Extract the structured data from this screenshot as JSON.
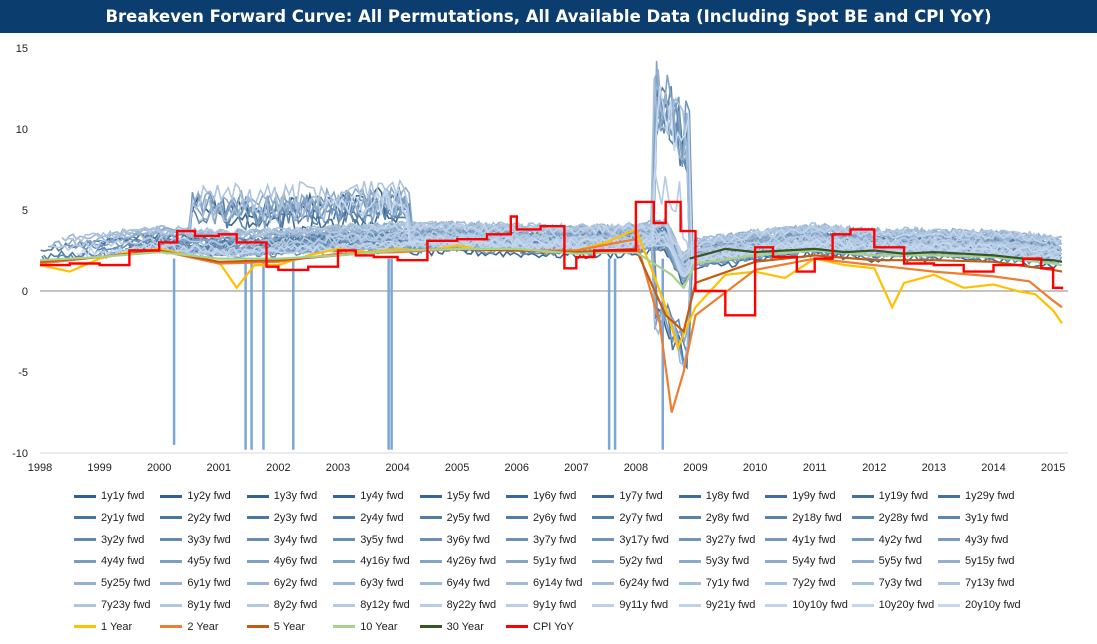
{
  "chart_data": {
    "type": "line",
    "title": "Breakeven Forward Curve: All Permutations, All Available Data (Including Spot BE and CPI YoY)",
    "xlabel": "",
    "ylabel": "",
    "xlim": [
      1998,
      2015.25
    ],
    "ylim": [
      -10,
      15
    ],
    "y_ticks": [
      -10,
      -5,
      0,
      5,
      10,
      15
    ],
    "x_ticks": [
      1998,
      1999,
      2000,
      2001,
      2002,
      2003,
      2004,
      2005,
      2006,
      2007,
      2008,
      2009,
      2010,
      2011,
      2012,
      2013,
      2014,
      2015
    ],
    "grid": false,
    "legend_position": "bottom",
    "forward_series_names": [
      "1y1y fwd",
      "1y2y fwd",
      "1y3y fwd",
      "1y4y fwd",
      "1y5y fwd",
      "1y6y fwd",
      "1y7y fwd",
      "1y8y fwd",
      "1y9y fwd",
      "1y19y fwd",
      "1y29y fwd",
      "2y1y fwd",
      "2y2y fwd",
      "2y3y fwd",
      "2y4y fwd",
      "2y5y fwd",
      "2y6y fwd",
      "2y7y fwd",
      "2y8y fwd",
      "2y18y fwd",
      "2y28y fwd",
      "3y1y fwd",
      "3y2y fwd",
      "3y3y fwd",
      "3y4y fwd",
      "3y5y fwd",
      "3y6y fwd",
      "3y7y fwd",
      "3y17y fwd",
      "3y27y fwd",
      "4y1y fwd",
      "4y2y fwd",
      "4y3y fwd",
      "4y4y fwd",
      "4y5y fwd",
      "4y6y fwd",
      "4y16y fwd",
      "4y26y fwd",
      "5y1y fwd",
      "5y2y fwd",
      "5y3y fwd",
      "5y4y fwd",
      "5y5y fwd",
      "5y15y fwd",
      "5y25y fwd",
      "6y1y fwd",
      "6y2y fwd",
      "6y3y fwd",
      "6y4y fwd",
      "6y14y fwd",
      "6y24y fwd",
      "7y1y fwd",
      "7y2y fwd",
      "7y3y fwd",
      "7y13y fwd",
      "7y23y fwd",
      "8y1y fwd",
      "8y2y fwd",
      "8y12y fwd",
      "8y22y fwd",
      "9y1y fwd",
      "9y11y fwd",
      "9y21y fwd",
      "10y10y fwd",
      "10y20y fwd",
      "20y10y fwd"
    ],
    "series": [
      {
        "name": "1 Year",
        "color": "#ffc000",
        "x": [
          1998,
          1998.5,
          1999,
          1999.5,
          2000,
          2000.5,
          2001,
          2001.3,
          2001.6,
          2002,
          2002.5,
          2003,
          2003.5,
          2004,
          2004.5,
          2005,
          2005.5,
          2006,
          2006.5,
          2007,
          2007.5,
          2008,
          2008.3,
          2008.5,
          2008.7,
          2009,
          2009.5,
          2010,
          2010.5,
          2011,
          2011.5,
          2012,
          2012.3,
          2012.5,
          2013,
          2013.5,
          2014,
          2014.4,
          2014.7,
          2015,
          2015.15
        ],
        "y": [
          1.6,
          1.2,
          2.0,
          2.4,
          2.6,
          2.2,
          1.8,
          0.2,
          1.6,
          1.6,
          2.2,
          2.6,
          2.4,
          2.6,
          2.5,
          2.8,
          2.5,
          2.6,
          2.4,
          2.5,
          3.0,
          3.8,
          1.0,
          -1.0,
          -3.5,
          -1.0,
          1.0,
          1.2,
          0.8,
          2.0,
          1.6,
          1.4,
          -1.0,
          0.5,
          1.0,
          0.2,
          0.4,
          0.0,
          -0.2,
          -1.2,
          -2.0
        ]
      },
      {
        "name": "2 Year",
        "color": "#ed7d31",
        "x": [
          1998,
          1999,
          2000,
          2001,
          2002,
          2003,
          2004,
          2005,
          2006,
          2007,
          2008,
          2008.4,
          2008.6,
          2008.8,
          2009,
          2010,
          2011,
          2012,
          2013,
          2014,
          2014.6,
          2015,
          2015.15
        ],
        "y": [
          1.7,
          2.1,
          2.5,
          1.7,
          1.8,
          2.3,
          2.4,
          2.6,
          2.5,
          2.5,
          3.2,
          -2.0,
          -7.5,
          -5.0,
          -1.5,
          1.3,
          2.0,
          1.6,
          1.2,
          0.9,
          0.6,
          -0.6,
          -1.0
        ]
      },
      {
        "name": "5 Year",
        "color": "#c55a11",
        "x": [
          1998,
          1999,
          2000,
          2001,
          2002,
          2003,
          2004,
          2005,
          2006,
          2007,
          2008,
          2008.5,
          2008.8,
          2009,
          2010,
          2011,
          2012,
          2013,
          2014,
          2015,
          2015.15
        ],
        "y": [
          1.8,
          2.1,
          2.5,
          1.8,
          1.9,
          2.2,
          2.5,
          2.6,
          2.5,
          2.4,
          2.6,
          -1.5,
          -2.5,
          0.5,
          1.8,
          2.2,
          1.9,
          1.9,
          1.8,
          1.3,
          1.2
        ]
      },
      {
        "name": "10 Year",
        "color": "#a9d18e",
        "x": [
          1998,
          1999,
          2000,
          2001,
          2002,
          2003,
          2004,
          2005,
          2006,
          2007,
          2008,
          2008.6,
          2008.8,
          2009,
          2010,
          2011,
          2012,
          2013,
          2014,
          2015,
          2015.15
        ],
        "y": [
          1.9,
          2.1,
          2.4,
          2.0,
          2.0,
          2.2,
          2.5,
          2.6,
          2.6,
          2.3,
          2.4,
          1.0,
          0.2,
          1.7,
          2.2,
          2.5,
          2.2,
          2.2,
          2.1,
          1.7,
          1.6
        ]
      },
      {
        "name": "30 Year",
        "color": "#375623",
        "x": [
          2008.9,
          2009.5,
          2010,
          2010.5,
          2011,
          2011.5,
          2012,
          2012.5,
          2013,
          2013.5,
          2014,
          2014.5,
          2015,
          2015.15
        ],
        "y": [
          2.0,
          2.6,
          2.4,
          2.5,
          2.6,
          2.4,
          2.5,
          2.3,
          2.4,
          2.3,
          2.2,
          2.0,
          1.9,
          1.8
        ]
      },
      {
        "name": "CPI YoY",
        "color": "#ff0000",
        "x": [
          1998,
          1998.5,
          1999,
          1999.5,
          2000,
          2000.3,
          2000.6,
          2001,
          2001.3,
          2001.8,
          2002,
          2002.5,
          2003,
          2003.3,
          2003.6,
          2004,
          2004.5,
          2005,
          2005.5,
          2005.9,
          2006,
          2006.4,
          2006.8,
          2007,
          2007.3,
          2007.6,
          2008,
          2008.3,
          2008.5,
          2008.75,
          2009,
          2009.5,
          2010,
          2010.3,
          2010.7,
          2011,
          2011.3,
          2011.6,
          2012,
          2012.5,
          2013,
          2013.5,
          2014,
          2014.5,
          2014.8,
          2015,
          2015.15
        ],
        "y": [
          1.6,
          1.7,
          1.6,
          2.5,
          3.0,
          3.7,
          3.4,
          3.5,
          3.0,
          1.5,
          1.3,
          1.5,
          2.5,
          2.2,
          2.1,
          1.9,
          3.1,
          3.2,
          3.5,
          4.6,
          3.8,
          4.0,
          1.4,
          2.1,
          2.5,
          2.5,
          5.5,
          4.2,
          5.5,
          3.7,
          0.0,
          -1.5,
          2.7,
          2.1,
          1.2,
          2.0,
          3.5,
          3.8,
          2.7,
          1.7,
          1.6,
          1.2,
          1.6,
          2.0,
          1.4,
          0.2,
          0.1
        ]
      }
    ]
  },
  "legend": {
    "rows": [
      [
        "1y1y fwd",
        "1y2y fwd",
        "1y3y fwd",
        "1y4y fwd",
        "1y5y fwd",
        "1y6y fwd",
        "1y7y fwd",
        "1y8y fwd",
        "1y9y fwd",
        "1y19y fwd",
        "1y29y fwd"
      ],
      [
        "2y1y fwd",
        "2y2y fwd",
        "2y3y fwd",
        "2y4y fwd",
        "2y5y fwd",
        "2y6y fwd",
        "2y7y fwd",
        "2y8y fwd",
        "2y18y fwd",
        "2y28y fwd",
        "3y1y fwd"
      ],
      [
        "3y2y fwd",
        "3y3y fwd",
        "3y4y fwd",
        "3y5y fwd",
        "3y6y fwd",
        "3y7y fwd",
        "3y17y fwd",
        "3y27y fwd",
        "4y1y fwd",
        "4y2y fwd",
        "4y3y fwd"
      ],
      [
        "4y4y fwd",
        "4y5y fwd",
        "4y6y fwd",
        "4y16y fwd",
        "4y26y fwd",
        "5y1y fwd",
        "5y2y fwd",
        "5y3y fwd",
        "5y4y fwd",
        "5y5y fwd",
        "5y15y fwd"
      ],
      [
        "5y25y fwd",
        "6y1y fwd",
        "6y2y fwd",
        "6y3y fwd",
        "6y4y fwd",
        "6y14y fwd",
        "6y24y fwd",
        "7y1y fwd",
        "7y2y fwd",
        "7y3y fwd",
        "7y13y fwd"
      ],
      [
        "7y23y fwd",
        "8y1y fwd",
        "8y2y fwd",
        "8y12y fwd",
        "8y22y fwd",
        "9y1y fwd",
        "9y11y fwd",
        "9y21y fwd",
        "10y10y fwd",
        "10y20y fwd",
        "20y10y fwd"
      ],
      [
        "1 Year",
        "2 Year",
        "5 Year",
        "10 Year",
        "30 Year",
        "CPI YoY"
      ]
    ],
    "forward_color_start": "#2f5f8f",
    "forward_color_end": "#c5d8ee",
    "highlight_colors": {
      "1 Year": "#ffc000",
      "2 Year": "#ed7d31",
      "5 Year": "#c55a11",
      "10 Year": "#a9d18e",
      "30 Year": "#375623",
      "CPI YoY": "#ff0000"
    }
  },
  "colors": {
    "title_bar_background": "#0b3d6e",
    "title_text": "#ffffff",
    "axis": "#888888"
  }
}
